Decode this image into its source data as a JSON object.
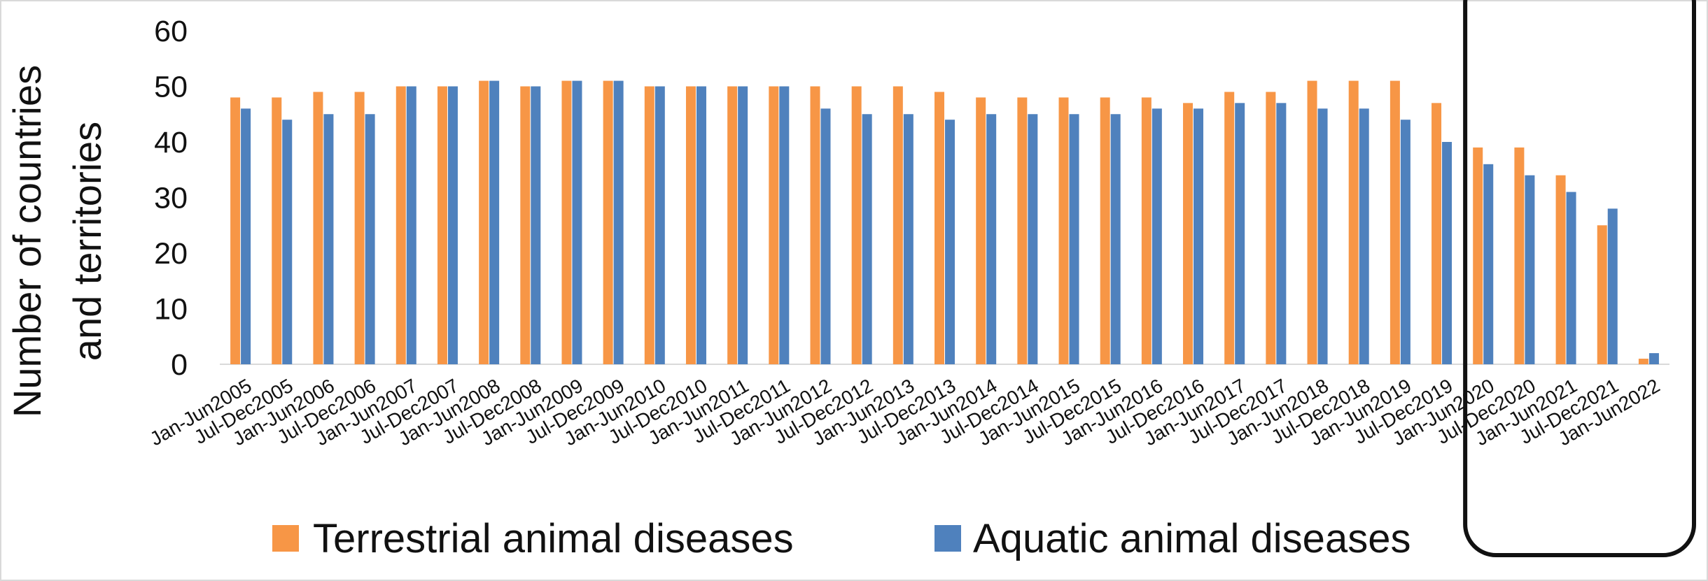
{
  "chart_data": {
    "type": "bar",
    "title": "",
    "ylabel_lines": [
      "Number of countries",
      "and territories"
    ],
    "xlabel": "",
    "ylim": [
      0,
      60
    ],
    "yticks": [
      0,
      10,
      20,
      30,
      40,
      50,
      60
    ],
    "grid": false,
    "legend_position": "bottom",
    "categories": [
      "Jan-Jun2005",
      "Jul-Dec2005",
      "Jan-Jun2006",
      "Jul-Dec2006",
      "Jan-Jun2007",
      "Jul-Dec2007",
      "Jan-Jun2008",
      "Jul-Dec2008",
      "Jan-Jun2009",
      "Jul-Dec2009",
      "Jan-Jun2010",
      "Jul-Dec2010",
      "Jan-Jun2011",
      "Jul-Dec2011",
      "Jan-Jun2012",
      "Jul-Dec2012",
      "Jan-Jun2013",
      "Jul-Dec2013",
      "Jan-Jun2014",
      "Jul-Dec2014",
      "Jan-Jun2015",
      "Jul-Dec2015",
      "Jan-Jun2016",
      "Jul-Dec2016",
      "Jan-Jun2017",
      "Jul-Dec2017",
      "Jan-Jun2018",
      "Jul-Dec2018",
      "Jan-Jun2019",
      "Jul-Dec2019",
      "Jan-Jun2020",
      "Jul-Dec2020",
      "Jan-Jun2021",
      "Jul-Dec2021",
      "Jan-Jun2022"
    ],
    "series": [
      {
        "name": "Terrestrial animal diseases",
        "color": "#F79646",
        "values": [
          48,
          48,
          49,
          49,
          50,
          50,
          51,
          50,
          51,
          51,
          50,
          50,
          50,
          50,
          50,
          50,
          50,
          49,
          48,
          48,
          48,
          48,
          48,
          47,
          49,
          49,
          51,
          51,
          51,
          47,
          39,
          39,
          34,
          25,
          1
        ]
      },
      {
        "name": "Aquatic animal diseases",
        "color": "#4F81BD",
        "values": [
          46,
          44,
          45,
          45,
          50,
          50,
          51,
          50,
          51,
          51,
          50,
          50,
          50,
          50,
          46,
          45,
          45,
          44,
          45,
          45,
          45,
          45,
          46,
          46,
          47,
          47,
          46,
          46,
          44,
          40,
          36,
          34,
          31,
          28,
          2
        ]
      }
    ],
    "highlight": {
      "shape": "rounded-rectangle",
      "covers_categories_from": "Jan-Jun2020",
      "covers_categories_to": "Jan-Jun2022",
      "color": "#111111"
    }
  }
}
